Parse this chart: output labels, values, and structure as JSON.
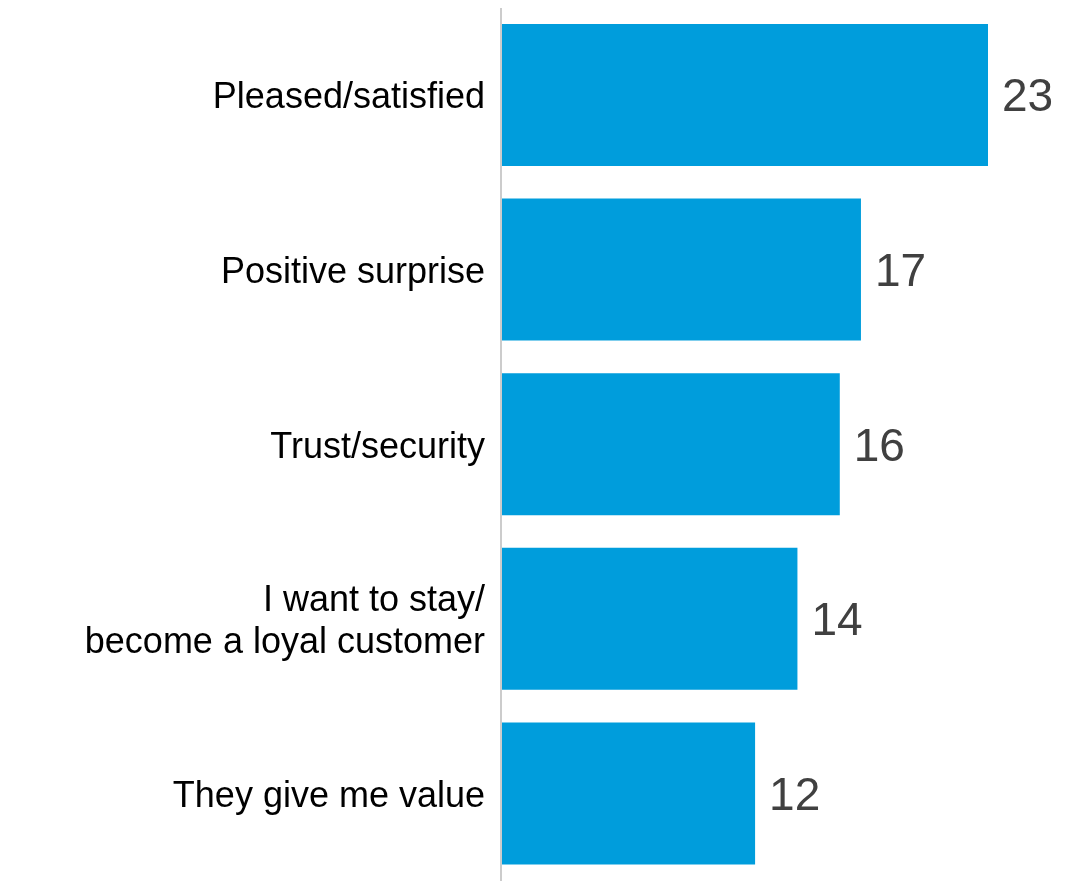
{
  "chart_data": {
    "type": "bar",
    "orientation": "horizontal",
    "categories": [
      "Pleased/satisfied",
      "Positive surprise",
      "Trust/security",
      "I want to stay/\nbecome a loyal customer",
      "They give me value"
    ],
    "values": [
      23,
      17,
      16,
      14,
      12
    ],
    "color": "#009ddc",
    "data_labels": true
  }
}
